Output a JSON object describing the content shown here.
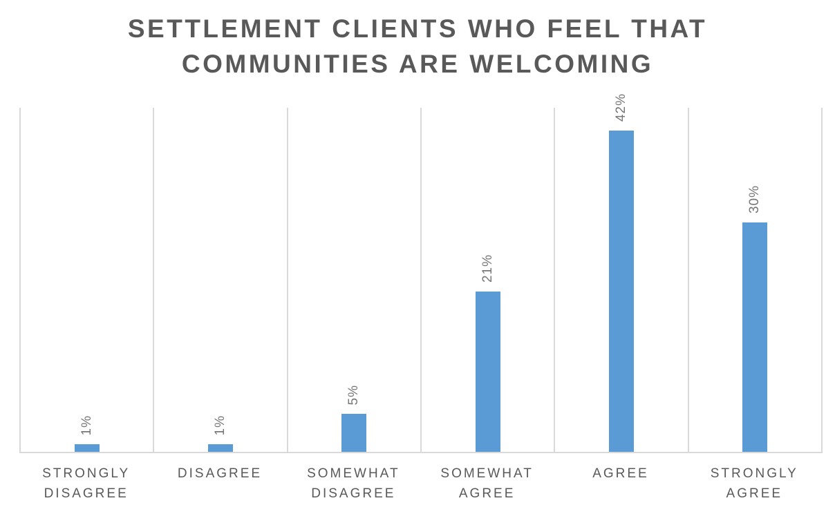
{
  "title": {
    "line1": "SETTLEMENT CLIENTS WHO FEEL THAT",
    "line2": "COMMUNITIES ARE WELCOMING"
  },
  "chart_data": {
    "type": "bar",
    "title": "SETTLEMENT CLIENTS WHO FEEL THAT COMMUNITIES ARE WELCOMING",
    "categories": [
      "STRONGLY DISAGREE",
      "DISAGREE",
      "SOMEWHAT DISAGREE",
      "SOMEWHAT AGREE",
      "AGREE",
      "STRONGLY AGREE"
    ],
    "values": [
      1,
      1,
      5,
      21,
      42,
      30
    ],
    "data_labels": [
      "1%",
      "1%",
      "5%",
      "21%",
      "42%",
      "30%"
    ],
    "data_label_rotation_deg": -90,
    "xlabel": "",
    "ylabel": "",
    "ylim": [
      0,
      45
    ],
    "y_axis_ticks": "hidden",
    "gridlines": "vertical category separators only",
    "legend_position": "none",
    "colors": {
      "bar": "#5B9BD5",
      "gridline": "#D9D9D9",
      "title_text": "#595959",
      "category_label_text": "#595959",
      "data_label_text": "#767676"
    }
  }
}
